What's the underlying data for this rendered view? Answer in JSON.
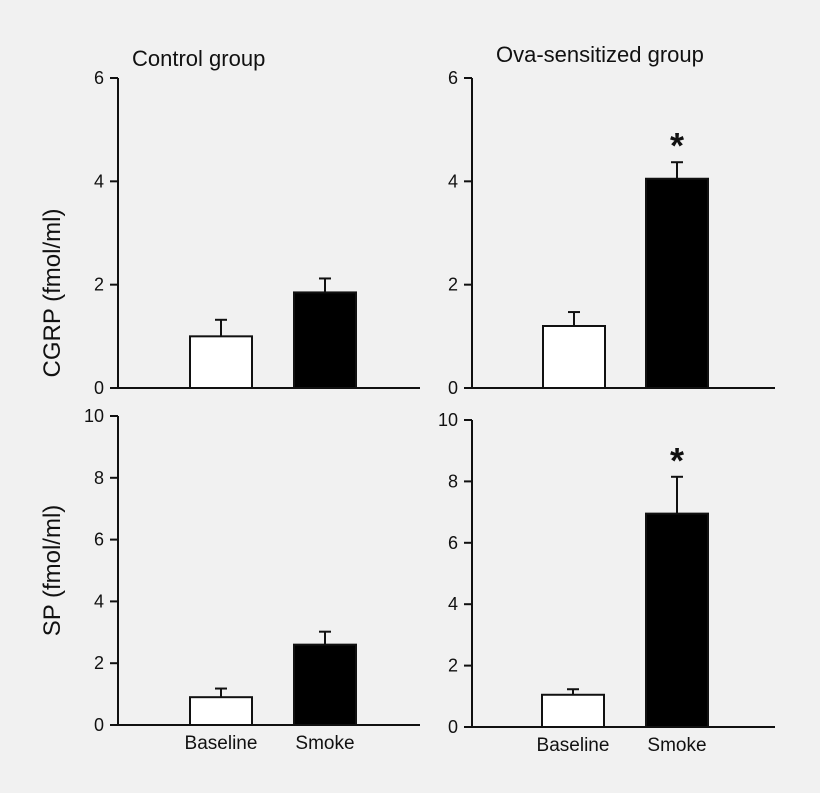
{
  "colors": {
    "background": "#f1f1f1",
    "baseline_fill": "#ffffff",
    "smoke_fill": "#000000",
    "ink": "#111111"
  },
  "group_titles": [
    "Control group",
    "Ova-sensitized group"
  ],
  "row_ylabels": [
    "CGRP (fmol/ml)",
    "SP (fmol/ml)"
  ],
  "chart_data": [
    {
      "type": "bar",
      "title": "Control group",
      "ylabel": "CGRP (fmol/ml)",
      "categories": [
        "Baseline",
        "Smoke"
      ],
      "values": [
        1.0,
        1.85
      ],
      "errors": [
        0.32,
        0.27
      ],
      "significance": [
        "",
        ""
      ],
      "ylim": [
        0,
        6
      ],
      "yticks": [
        0,
        2,
        4,
        6
      ],
      "show_xlabels": false
    },
    {
      "type": "bar",
      "title": "Ova-sensitized group",
      "ylabel": "",
      "categories": [
        "Baseline",
        "Smoke"
      ],
      "values": [
        1.2,
        4.05
      ],
      "errors": [
        0.27,
        0.32
      ],
      "significance": [
        "",
        "*"
      ],
      "ylim": [
        0,
        6
      ],
      "yticks": [
        0,
        2,
        4,
        6
      ],
      "show_xlabels": false
    },
    {
      "type": "bar",
      "title": "",
      "ylabel": "SP (fmol/ml)",
      "categories": [
        "Baseline",
        "Smoke"
      ],
      "values": [
        0.9,
        2.6
      ],
      "errors": [
        0.28,
        0.42
      ],
      "significance": [
        "",
        ""
      ],
      "ylim": [
        0,
        10
      ],
      "yticks": [
        0,
        2,
        4,
        6,
        8,
        10
      ],
      "show_xlabels": true
    },
    {
      "type": "bar",
      "title": "",
      "ylabel": "",
      "categories": [
        "Baseline",
        "Smoke"
      ],
      "values": [
        1.05,
        6.95
      ],
      "errors": [
        0.18,
        1.2
      ],
      "significance": [
        "",
        "*"
      ],
      "ylim": [
        0,
        10
      ],
      "yticks": [
        0,
        2,
        4,
        6,
        8,
        10
      ],
      "show_xlabels": true
    }
  ]
}
